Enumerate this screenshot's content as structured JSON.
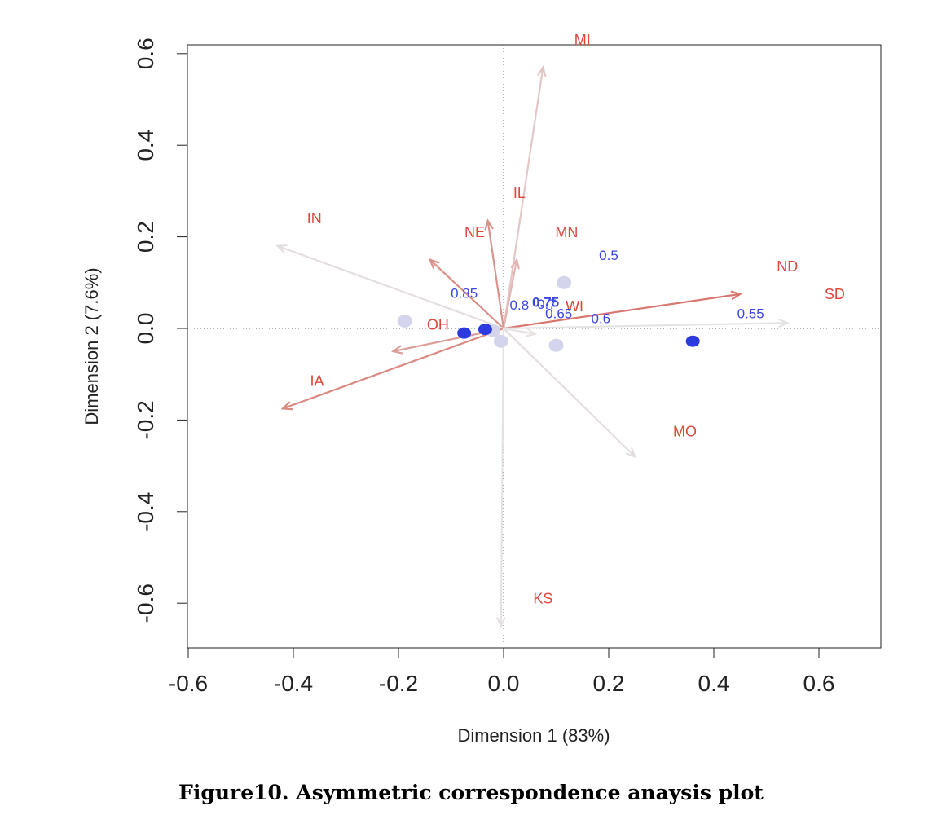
{
  "caption": "Figure10. Asymmetric correspondence anaysis plot",
  "chart_data": {
    "type": "scatter",
    "xlabel": "Dimension 1 (83%)",
    "ylabel": "Dimension 2 (7.6%)",
    "xlim": [
      -0.6,
      0.72
    ],
    "ylim": [
      -0.69,
      0.63
    ],
    "x_ticks": [
      "-0.6",
      "-0.4",
      "-0.2",
      "0.0",
      "0.2",
      "0.4",
      "0.6"
    ],
    "x_tick_values": [
      -0.6,
      -0.4,
      -0.2,
      0.0,
      0.2,
      0.4,
      0.6
    ],
    "y_ticks": [
      "-0.6",
      "-0.4",
      "-0.2",
      "0.0",
      "0.2",
      "0.4",
      "0.6"
    ],
    "y_tick_values": [
      -0.6,
      -0.4,
      -0.2,
      0.0,
      0.2,
      0.4,
      0.6
    ],
    "reference_lines": "dotted lines at x = 0 and y = 0",
    "colors": {
      "state_label": "#e0463c",
      "threshold_label": "#3a47e6",
      "arrow_strong": "#d9827c",
      "arrow_faint": "#e6dede",
      "point_strong": "#2b3be0",
      "point_faint": "#d4d5ec"
    },
    "arrows": [
      {
        "x": 0.075,
        "y": 0.57,
        "color": "#e3c6c6"
      },
      {
        "x": 0.025,
        "y": 0.15,
        "color": "#e4b6b3"
      },
      {
        "x": -0.03,
        "y": 0.235,
        "color": "#d9938c"
      },
      {
        "x": -0.14,
        "y": 0.15,
        "color": "#d99089"
      },
      {
        "x": -0.43,
        "y": 0.18,
        "color": "#e4dede"
      },
      {
        "x": -0.21,
        "y": -0.05,
        "color": "#dc9e98"
      },
      {
        "x": -0.42,
        "y": -0.175,
        "color": "#da8a83"
      },
      {
        "x": 0.45,
        "y": 0.075,
        "color": "#d9766f"
      },
      {
        "x": 0.54,
        "y": 0.012,
        "color": "#e4e4e4"
      },
      {
        "x": 0.25,
        "y": -0.28,
        "color": "#e6dede"
      },
      {
        "x": -0.005,
        "y": -0.65,
        "color": "#e6e2e2"
      },
      {
        "x": 0.06,
        "y": -0.012,
        "color": "#e8e2e2"
      }
    ],
    "state_labels": [
      {
        "label": "MI",
        "x": 0.15,
        "y": 0.63
      },
      {
        "label": "IL",
        "x": 0.03,
        "y": 0.295
      },
      {
        "label": "IN",
        "x": -0.36,
        "y": 0.24
      },
      {
        "label": "NE",
        "x": -0.055,
        "y": 0.21
      },
      {
        "label": "MN",
        "x": 0.12,
        "y": 0.21
      },
      {
        "label": "ND",
        "x": 0.54,
        "y": 0.135
      },
      {
        "label": "SD",
        "x": 0.63,
        "y": 0.075
      },
      {
        "label": "WI",
        "x": 0.135,
        "y": 0.048
      },
      {
        "label": "OH",
        "x": -0.125,
        "y": 0.008
      },
      {
        "label": "IA",
        "x": -0.355,
        "y": -0.115
      },
      {
        "label": "MO",
        "x": 0.345,
        "y": -0.225
      },
      {
        "label": "KS",
        "x": 0.075,
        "y": -0.59
      }
    ],
    "threshold_points": [
      {
        "label": "0.5",
        "x": 0.115,
        "y": 0.1,
        "label_x": 0.2,
        "label_y": 0.16,
        "strength": "faint"
      },
      {
        "label": "0.55",
        "x": 0.36,
        "y": -0.028,
        "label_x": 0.47,
        "label_y": 0.033,
        "strength": "strong"
      },
      {
        "label": "0.6",
        "x": 0.1,
        "y": -0.037,
        "label_x": 0.185,
        "label_y": 0.022,
        "strength": "faint"
      },
      {
        "label": "0.65",
        "x": -0.005,
        "y": -0.028,
        "label_x": 0.105,
        "label_y": 0.033,
        "strength": "faint"
      },
      {
        "label": "0.7",
        "x": -0.02,
        "y": -0.005,
        "label_x": 0.082,
        "label_y": 0.053,
        "strength": "faint"
      },
      {
        "label": "0.75",
        "x": -0.035,
        "y": -0.002,
        "label_x": 0.08,
        "label_y": 0.058,
        "strength": "strong"
      },
      {
        "label": "0.8",
        "x": -0.075,
        "y": -0.01,
        "label_x": 0.03,
        "label_y": 0.052,
        "strength": "strong"
      },
      {
        "label": "0.85",
        "x": -0.188,
        "y": 0.016,
        "label_x": -0.075,
        "label_y": 0.077,
        "strength": "faint"
      }
    ]
  }
}
